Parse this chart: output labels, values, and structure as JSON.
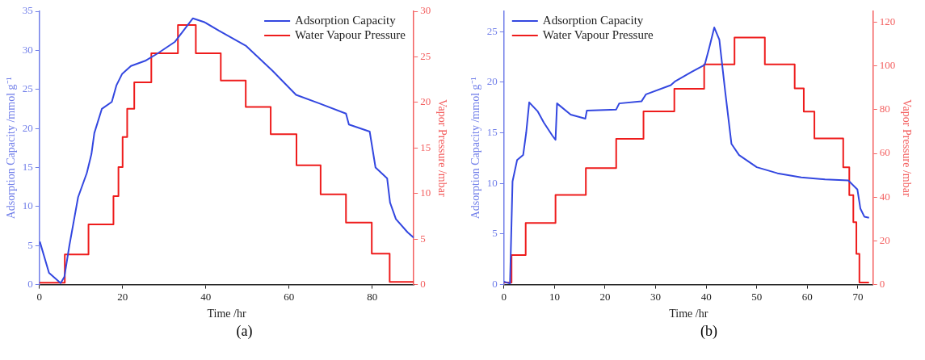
{
  "chart_data": [
    {
      "type": "line",
      "xlabel": "Time /hr",
      "ylabel": "Adsorption Capacity /mmol g⁻¹",
      "y2label": "Vapor Pressure /mbar",
      "annotations": [
        "(a)"
      ],
      "legend": "top right",
      "grid": false,
      "marker": "none",
      "xlim": [
        0,
        90
      ],
      "xticks": [
        0,
        20,
        40,
        60,
        80
      ],
      "ylim": [
        0,
        35
      ],
      "yticks": [
        0,
        5,
        10,
        15,
        20,
        25,
        30,
        35
      ],
      "y2lim": [
        0,
        30
      ],
      "y2ticks": [
        0,
        5,
        10,
        15,
        20,
        25,
        30
      ],
      "series": [
        {
          "name": "Adsorption Capacity",
          "type": "line",
          "color": "#3347e0",
          "x": [
            0.1,
            2.3,
            5.1,
            6,
            7.2,
            9.3,
            11.4,
            12.5,
            13.2,
            15,
            17.4,
            18.5,
            19.9,
            22,
            25.6,
            28.4,
            32.6,
            36.9,
            39.7,
            43.2,
            49.6,
            56,
            61.7,
            67.3,
            73.7,
            74.4,
            79.4,
            80.8,
            83.6,
            84.3,
            85.7,
            88.5,
            90
          ],
          "values": [
            5.5,
            1.5,
            0.2,
            1,
            5,
            11.2,
            14.3,
            16.7,
            19.4,
            22.5,
            23.4,
            25.5,
            27,
            28,
            28.7,
            29.6,
            31.1,
            34.1,
            33.6,
            32.5,
            30.6,
            27.4,
            24.3,
            23.2,
            21.9,
            20.5,
            19.6,
            15,
            13.6,
            10.5,
            8.4,
            6.7,
            6
          ]
        },
        {
          "name": "Water Vapour Pressure",
          "type": "step",
          "axis": "y2",
          "color": "#ee1c1c",
          "x": [
            0,
            6.1,
            11.8,
            17.8,
            19,
            20,
            21.1,
            22.8,
            26.9,
            33.3,
            37.6,
            43.6,
            49.6,
            55.6,
            61.8,
            67.6,
            73.7,
            79.9,
            84.2,
            90
          ],
          "values": [
            0.2,
            3.3,
            6.6,
            9.7,
            12.9,
            16.2,
            19.3,
            22.2,
            25.4,
            28.5,
            25.4,
            22.4,
            19.5,
            16.5,
            13.1,
            9.9,
            6.8,
            3.4,
            0.3,
            0.3
          ]
        }
      ]
    },
    {
      "type": "line",
      "xlabel": "Time /hr",
      "ylabel": "Adsorption Capacity /mmol g⁻¹",
      "y2label": "Vapor Pressure /mbar",
      "annotations": [
        "(b)"
      ],
      "legend": "top left",
      "grid": false,
      "marker": "none",
      "xlim": [
        0,
        73
      ],
      "xticks": [
        0,
        10,
        20,
        30,
        40,
        50,
        60,
        70
      ],
      "ylim": [
        0,
        27
      ],
      "yticks": [
        0,
        5,
        10,
        15,
        20,
        25
      ],
      "y2lim": [
        0,
        125
      ],
      "y2ticks": [
        0,
        20,
        40,
        60,
        80,
        100,
        120
      ],
      "series": [
        {
          "name": "Adsorption Capacity",
          "type": "line",
          "color": "#3347e0",
          "x": [
            0,
            1.2,
            1.7,
            2.6,
            3.8,
            4.4,
            5,
            6.7,
            7.9,
            9.6,
            10.2,
            10.5,
            13.2,
            16.1,
            16.4,
            22.2,
            22.8,
            27.2,
            28.1,
            33,
            33.9,
            37.1,
            39.7,
            40.6,
            41.6,
            42.6,
            43.8,
            45,
            46.5,
            50,
            54.1,
            58.8,
            63.5,
            68.1,
            69.9,
            70.5,
            71.3,
            72.2
          ],
          "values": [
            0.3,
            0.1,
            10.2,
            12.3,
            12.8,
            15,
            18,
            17.1,
            16,
            14.7,
            14.3,
            17.9,
            16.8,
            16.4,
            17.2,
            17.3,
            17.9,
            18.1,
            18.8,
            19.7,
            20.1,
            21,
            21.7,
            23.4,
            25.4,
            24.2,
            18.9,
            13.9,
            12.8,
            11.6,
            11,
            10.6,
            10.4,
            10.3,
            9.4,
            7.5,
            6.7,
            6.6
          ]
        },
        {
          "name": "Water Vapour Pressure",
          "type": "step",
          "axis": "y2",
          "color": "#ee1c1c",
          "x": [
            0,
            1.5,
            4.3,
            10.2,
            16.2,
            22.2,
            27.6,
            33.7,
            39.6,
            45.6,
            51.6,
            57.5,
            59.3,
            61.4,
            67.1,
            68.3,
            69.1,
            69.7,
            70.3,
            72.2
          ],
          "values": [
            1,
            13.5,
            28.2,
            41,
            53.3,
            66.7,
            79.2,
            89.6,
            100.7,
            113,
            100.7,
            89.7,
            79.1,
            66.9,
            53.7,
            40.9,
            28.6,
            14.1,
            1,
            1
          ]
        }
      ]
    }
  ]
}
